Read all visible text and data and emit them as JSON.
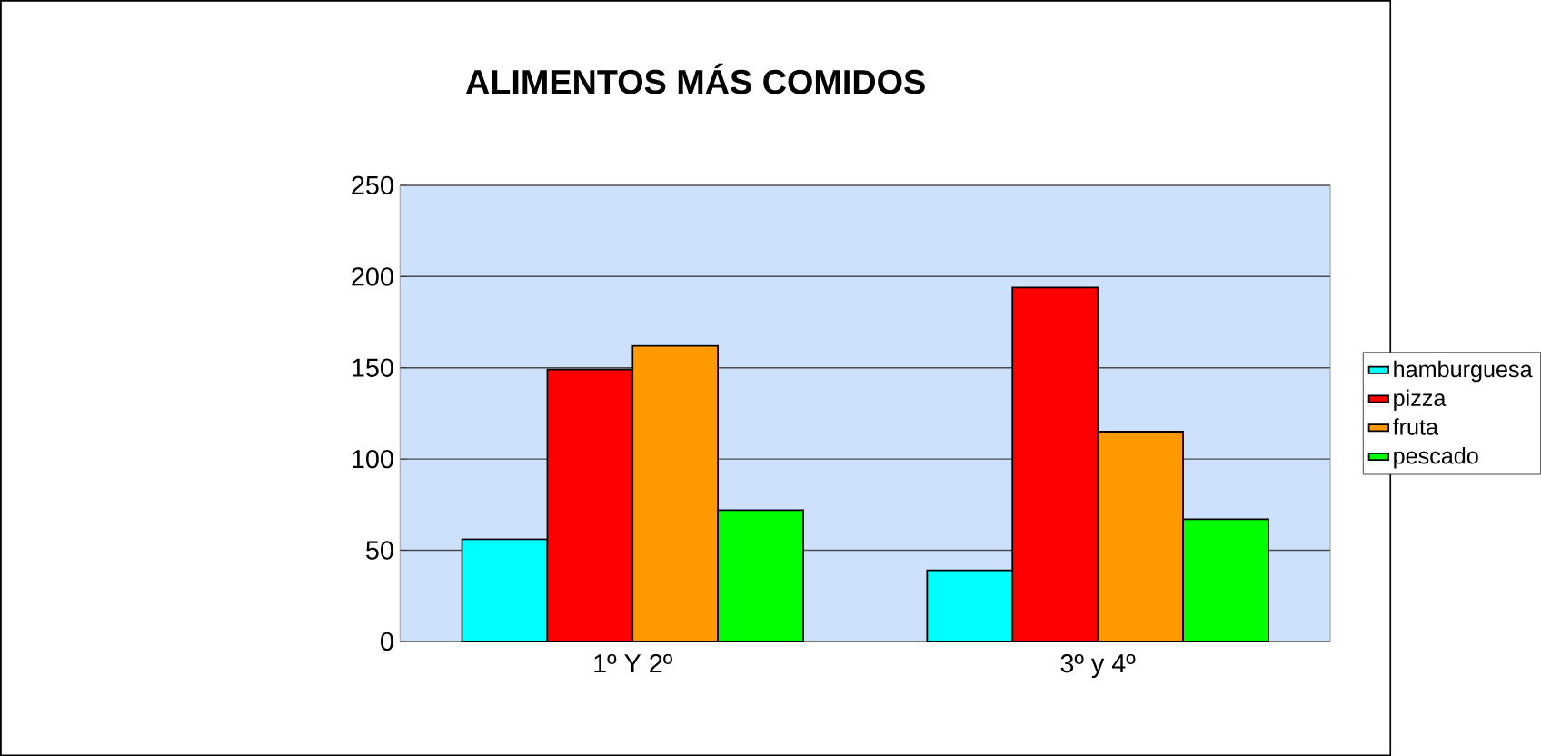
{
  "chart_data": {
    "type": "bar",
    "title": "ALIMENTOS MÁS COMIDOS",
    "categories": [
      "1º Y 2º",
      "3º y 4º"
    ],
    "series": [
      {
        "name": "hamburguesa",
        "color": "#00ffff",
        "values": [
          56,
          39
        ]
      },
      {
        "name": "pizza",
        "color": "#ff0000",
        "values": [
          149,
          194
        ]
      },
      {
        "name": "fruta",
        "color": "#ff9900",
        "values": [
          162,
          115
        ]
      },
      {
        "name": "pescado",
        "color": "#00ff00",
        "values": [
          72,
          67
        ]
      }
    ],
    "ylim": [
      0,
      250
    ],
    "yticks": [
      0,
      50,
      100,
      150,
      200,
      250
    ],
    "grid": "y",
    "legend": "right"
  }
}
